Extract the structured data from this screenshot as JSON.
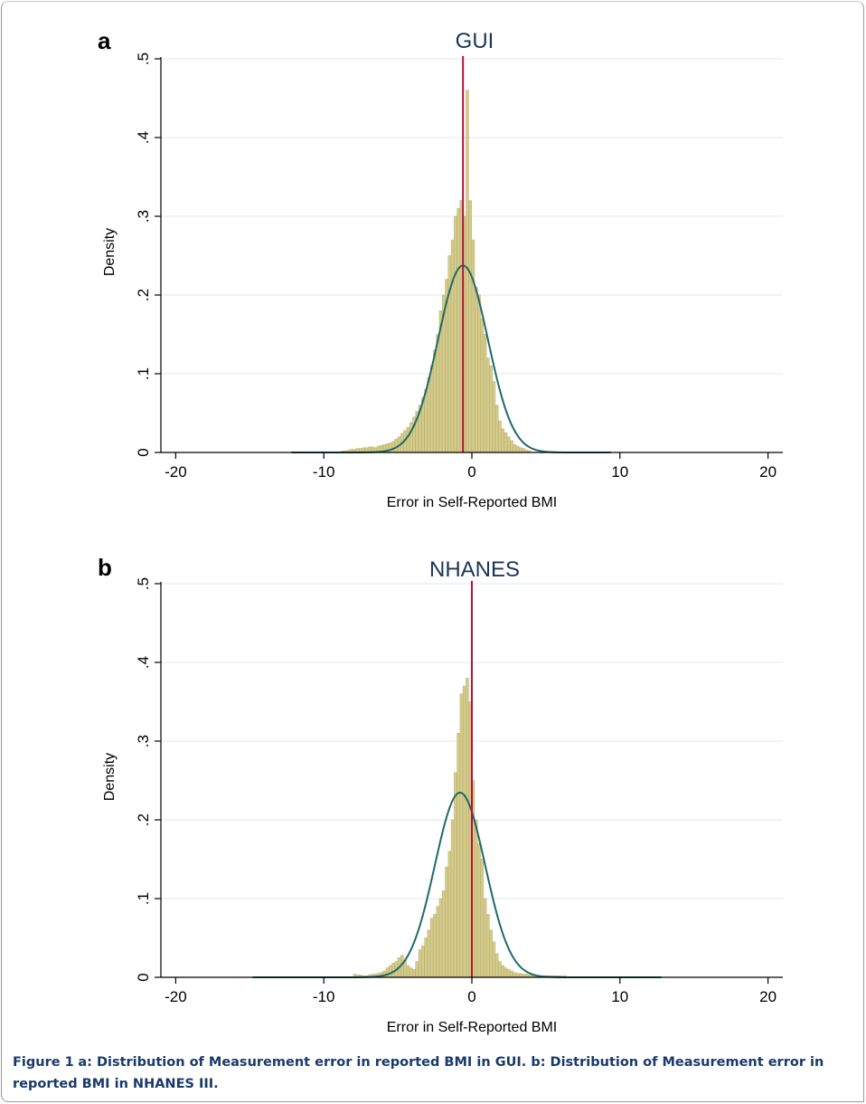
{
  "panels": [
    {
      "letter": "a",
      "title": "GUI"
    },
    {
      "letter": "b",
      "title": "NHANES"
    }
  ],
  "caption": {
    "label": "Figure 1",
    "text": "a: Distribution of Measurement error in reported BMI in GUI. b: Distribution of Measurement error in reported BMI in NHANES III."
  },
  "colors": {
    "bars": "#d4cc8c",
    "bar_edge": "#b9ae6a",
    "normal_curve": "#1f6a66",
    "reference_line": "#b5123b",
    "grid": "#e6edf2",
    "title": "#1c3557"
  },
  "chart_data": [
    {
      "type": "bar",
      "title": "GUI",
      "xlabel": "Error in Self-Reported BMI",
      "ylabel": "Density",
      "xlim": [
        -21,
        21
      ],
      "ylim": [
        0,
        0.5
      ],
      "x_ticks": [
        -20,
        -10,
        0,
        10,
        20
      ],
      "y_ticks": [
        0,
        0.1,
        0.2,
        0.3,
        0.4,
        0.5
      ],
      "y_tick_labels": [
        "0",
        ".1",
        ".2",
        ".3",
        ".4",
        ".5"
      ],
      "grid": true,
      "histogram": {
        "bin_width": 0.2,
        "bin_starts": [
          -8.8,
          -8.6,
          -8.4,
          -8.2,
          -8.0,
          -7.8,
          -7.6,
          -7.4,
          -7.2,
          -7.0,
          -6.8,
          -6.6,
          -6.4,
          -6.2,
          -6.0,
          -5.8,
          -5.6,
          -5.4,
          -5.2,
          -5.0,
          -4.8,
          -4.6,
          -4.4,
          -4.2,
          -4.0,
          -3.8,
          -3.6,
          -3.4,
          -3.2,
          -3.0,
          -2.8,
          -2.6,
          -2.4,
          -2.2,
          -2.0,
          -1.8,
          -1.6,
          -1.4,
          -1.2,
          -1.0,
          -0.8,
          -0.6,
          -0.4,
          -0.2,
          0.0,
          0.2,
          0.4,
          0.6,
          0.8,
          1.0,
          1.2,
          1.4,
          1.6,
          1.8,
          2.0,
          2.2,
          2.4,
          2.6,
          2.8,
          3.0,
          3.2,
          3.4,
          3.6,
          3.8
        ],
        "densities": [
          0.002,
          0.002,
          0.003,
          0.004,
          0.004,
          0.005,
          0.005,
          0.006,
          0.006,
          0.007,
          0.007,
          0.006,
          0.008,
          0.009,
          0.01,
          0.011,
          0.012,
          0.014,
          0.017,
          0.02,
          0.024,
          0.028,
          0.032,
          0.038,
          0.045,
          0.052,
          0.06,
          0.07,
          0.08,
          0.095,
          0.11,
          0.13,
          0.15,
          0.18,
          0.2,
          0.22,
          0.25,
          0.27,
          0.3,
          0.31,
          0.32,
          0.3,
          0.46,
          0.32,
          0.27,
          0.21,
          0.2,
          0.17,
          0.15,
          0.12,
          0.11,
          0.09,
          0.06,
          0.04,
          0.03,
          0.025,
          0.02,
          0.015,
          0.01,
          0.008,
          0.006,
          0.005,
          0.003,
          0.002
        ]
      },
      "normal_curve": {
        "mean": -0.6,
        "sd": 1.68,
        "x_range": [
          -12.2,
          9.4
        ]
      },
      "reference_line": {
        "x": -0.6,
        "to_top": true
      }
    },
    {
      "type": "bar",
      "title": "NHANES",
      "xlabel": "Error in Self-Reported BMI",
      "ylabel": "Density",
      "xlim": [
        -21,
        21
      ],
      "ylim": [
        0,
        0.5
      ],
      "x_ticks": [
        -20,
        -10,
        0,
        10,
        20
      ],
      "y_ticks": [
        0,
        0.1,
        0.2,
        0.3,
        0.4,
        0.5
      ],
      "y_tick_labels": [
        "0",
        ".1",
        ".2",
        ".3",
        ".4",
        ".5"
      ],
      "grid": true,
      "histogram": {
        "bin_width": 0.2,
        "bin_starts": [
          -8.0,
          -7.8,
          -7.6,
          -7.4,
          -7.2,
          -7.0,
          -6.8,
          -6.6,
          -6.4,
          -6.2,
          -6.0,
          -5.8,
          -5.6,
          -5.4,
          -5.2,
          -5.0,
          -4.8,
          -4.6,
          -4.4,
          -4.2,
          -4.0,
          -3.8,
          -3.6,
          -3.4,
          -3.2,
          -3.0,
          -2.8,
          -2.6,
          -2.4,
          -2.2,
          -2.0,
          -1.8,
          -1.6,
          -1.4,
          -1.2,
          -1.0,
          -0.8,
          -0.6,
          -0.4,
          -0.2,
          0.0,
          0.2,
          0.4,
          0.6,
          0.8,
          1.0,
          1.2,
          1.4,
          1.6,
          1.8,
          2.0,
          2.2,
          2.4,
          2.6,
          2.8,
          3.0,
          3.2,
          3.4,
          3.6,
          3.8,
          4.0,
          4.2,
          4.4,
          4.6,
          4.8,
          5.0,
          5.2,
          5.4,
          5.6,
          5.8,
          6.0,
          6.2
        ],
        "densities": [
          0.004,
          0.003,
          0.003,
          0.002,
          0.002,
          0.003,
          0.004,
          0.004,
          0.005,
          0.006,
          0.008,
          0.012,
          0.015,
          0.018,
          0.02,
          0.025,
          0.028,
          0.022,
          0.015,
          0.012,
          0.01,
          0.02,
          0.035,
          0.04,
          0.05,
          0.06,
          0.075,
          0.08,
          0.09,
          0.1,
          0.11,
          0.14,
          0.16,
          0.2,
          0.26,
          0.31,
          0.36,
          0.37,
          0.38,
          0.35,
          0.25,
          0.2,
          0.17,
          0.15,
          0.1,
          0.08,
          0.06,
          0.045,
          0.03,
          0.02,
          0.015,
          0.012,
          0.01,
          0.008,
          0.006,
          0.005,
          0.005,
          0.004,
          0.004,
          0.003,
          0.003,
          0.003,
          0.002,
          0.002,
          0.002,
          0.002,
          0.002,
          0.002,
          0.002,
          0.002,
          0.002,
          0.002
        ]
      },
      "normal_curve": {
        "mean": -0.8,
        "sd": 1.7,
        "x_range": [
          -14.8,
          12.8
        ]
      },
      "reference_line": {
        "x": 0.0,
        "to_top": true
      }
    }
  ]
}
